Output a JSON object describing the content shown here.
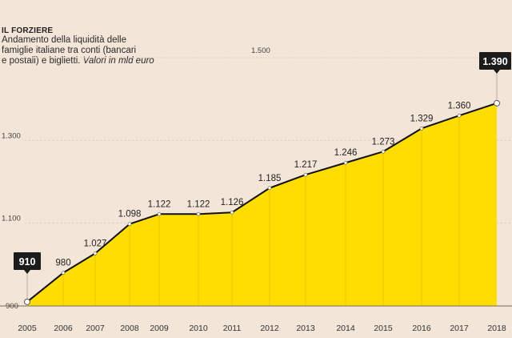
{
  "header": {
    "kicker": "IL FORZIERE",
    "subtitle_line1": "Andamento della liquidità delle",
    "subtitle_line2": "famiglie italiane tra conti (bancari",
    "subtitle_line3_plain": "e postali) e biglietti. ",
    "subtitle_line3_italic": "Valori in mld euro"
  },
  "colors": {
    "background": "#f3e5d8",
    "area_fill": "#ffdd00",
    "line": "#111111",
    "callout_bg": "#1c1c1c",
    "grid": "#e2d3c4"
  },
  "chart_data": {
    "type": "area",
    "title": "IL FORZIERE",
    "subtitle": "Andamento della liquidità delle famiglie italiane tra conti (bancari e postali) e biglietti. Valori in mld euro",
    "xlabel": "",
    "ylabel": "",
    "ylim": [
      900,
      1500
    ],
    "yticks": [
      900,
      1100,
      1300,
      1500
    ],
    "ytick_labels": [
      "900",
      "1.100",
      "1.300",
      "1.500"
    ],
    "grid": true,
    "categories": [
      "2005",
      "2006",
      "2007",
      "2008",
      "2009",
      "2010",
      "2011",
      "2012",
      "2013",
      "2014",
      "2015",
      "2016",
      "2017",
      "2018"
    ],
    "values": [
      910,
      980,
      1027,
      1098,
      1122,
      1122,
      1126,
      1185,
      1217,
      1246,
      1273,
      1329,
      1360,
      1390
    ],
    "data_labels": [
      "910",
      "980",
      "1.027",
      "1.098",
      "1.122",
      "1.122",
      "1.126",
      "1.185",
      "1.217",
      "1.246",
      "1.273",
      "1.329",
      "1.360",
      "1.390"
    ],
    "highlighted": [
      "2005",
      "2018"
    ]
  }
}
